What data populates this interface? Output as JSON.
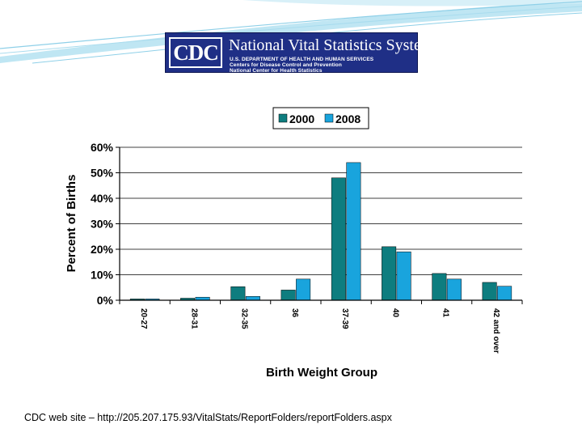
{
  "colors": {
    "series_2000": "#0e7d7f",
    "series_2008": "#19a4dd",
    "banner_bg": "#1f2f86",
    "swoosh": "#8fd0e8"
  },
  "banner": {
    "logo": "CDC",
    "title": "National Vital Statistics System",
    "line1": "U.S. DEPARTMENT OF HEALTH AND HUMAN SERVICES",
    "line2": "Centers for Disease Control and Prevention",
    "line3": "National Center for Health Statistics"
  },
  "chart_data": {
    "type": "bar",
    "categories": [
      "20-27",
      "28-31",
      "32-35",
      "36",
      "37-39",
      "40",
      "41",
      "42 and over"
    ],
    "series": [
      {
        "name": "2000",
        "values": [
          0.5,
          0.8,
          5.3,
          4.0,
          48.0,
          21.0,
          10.5,
          7.0
        ]
      },
      {
        "name": "2008",
        "values": [
          0.5,
          1.2,
          1.5,
          8.3,
          54.0,
          19.0,
          8.3,
          5.5
        ]
      }
    ],
    "xlabel": "Birth Weight Group",
    "ylabel": "Percent of Births",
    "ylim": [
      0,
      60
    ],
    "yticks": [
      0,
      10,
      20,
      30,
      40,
      50,
      60
    ],
    "ytick_labels": [
      "0%",
      "10%",
      "20%",
      "30%",
      "40%",
      "50%",
      "60%"
    ],
    "legend": "top",
    "grid": true
  },
  "footer": "CDC web site – http://205.207.175.93/VitalStats/ReportFolders/reportFolders.aspx"
}
